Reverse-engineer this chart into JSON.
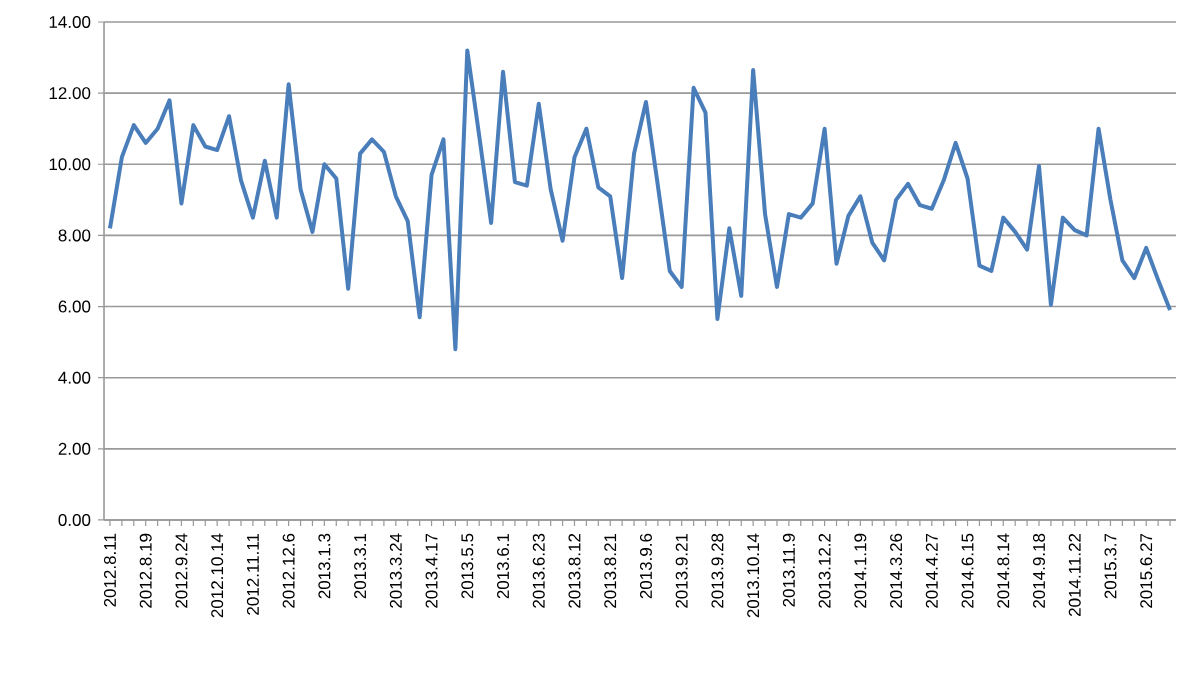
{
  "chart_data": {
    "type": "line",
    "categories": [
      "2012.8.11",
      null,
      null,
      "2012.8.19",
      null,
      null,
      "2012.9.24",
      null,
      null,
      "2012.10.14",
      null,
      null,
      "2012.11.11",
      null,
      null,
      "2012.12.6",
      null,
      null,
      "2013.1.3",
      null,
      null,
      "2013.3.1",
      null,
      null,
      "2013.3.24",
      null,
      null,
      "2013.4.17",
      null,
      null,
      "2013.5.5",
      null,
      null,
      "2013.6.1",
      null,
      null,
      "2013.6.23",
      null,
      null,
      "2013.8.12",
      null,
      null,
      "2013.8.21",
      null,
      null,
      "2013.9.6",
      null,
      null,
      "2013.9.21",
      null,
      null,
      "2013.9.28",
      null,
      null,
      "2013.10.14",
      null,
      null,
      "2013.11.9",
      null,
      null,
      "2013.12.2",
      null,
      null,
      "2014.1.19",
      null,
      null,
      "2014.3.26",
      null,
      null,
      "2014.4.27",
      null,
      null,
      "2014.6.15",
      null,
      null,
      "2014.8.14",
      null,
      null,
      "2014.9.18",
      null,
      null,
      "2014.11.22",
      null,
      null,
      "2015.3.7",
      null,
      null,
      "2015.6.27",
      null,
      null
    ],
    "series": [
      {
        "color": "#4a7ebb",
        "values": [
          8.2,
          10.2,
          11.1,
          10.6,
          11.0,
          11.8,
          8.9,
          11.1,
          10.5,
          10.4,
          11.35,
          9.55,
          8.5,
          10.1,
          8.5,
          12.25,
          9.3,
          8.1,
          10.0,
          9.6,
          6.5,
          10.3,
          10.7,
          10.35,
          9.1,
          8.4,
          5.7,
          9.7,
          10.7,
          4.8,
          13.2,
          10.8,
          8.35,
          12.6,
          9.5,
          9.4,
          11.7,
          9.3,
          7.85,
          10.2,
          11.0,
          9.35,
          9.1,
          6.8,
          10.3,
          11.75,
          9.4,
          7.0,
          6.55,
          12.15,
          11.45,
          5.65,
          8.2,
          6.3,
          12.65,
          8.6,
          6.55,
          8.6,
          8.5,
          8.9,
          11.0,
          7.2,
          8.55,
          9.1,
          7.8,
          7.3,
          9.0,
          9.45,
          8.85,
          8.75,
          9.55,
          10.6,
          9.6,
          7.15,
          7.0,
          8.5,
          8.1,
          7.6,
          9.95,
          6.05,
          8.5,
          8.15,
          8.0,
          11.0,
          9.0,
          7.3,
          6.8,
          7.65,
          6.75,
          5.9
        ]
      }
    ],
    "ylim": [
      0,
      14
    ],
    "yticks": [
      {
        "value": 0,
        "label": "0.00"
      },
      {
        "value": 2,
        "label": "2.00"
      },
      {
        "value": 4,
        "label": "4.00"
      },
      {
        "value": 6,
        "label": "6.00"
      },
      {
        "value": 8,
        "label": "8.00"
      },
      {
        "value": 10,
        "label": "10.00"
      },
      {
        "value": 12,
        "label": "12.00"
      },
      {
        "value": 14,
        "label": "14.00"
      }
    ],
    "grid": "y",
    "legend": false,
    "marker": "none",
    "line_style": "solid"
  }
}
